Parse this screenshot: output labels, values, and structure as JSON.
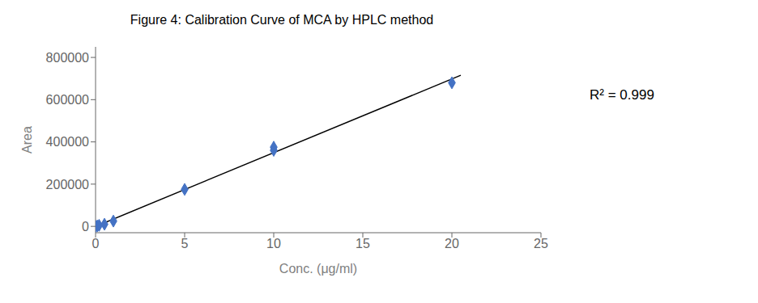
{
  "chart_data": {
    "type": "scatter",
    "title": "Figure 4: Calibration Curve of MCA by HPLC method",
    "x_label": "Conc. (μg/ml)",
    "y_label": "Area",
    "series": [
      {
        "type": "scatter",
        "x": [
          0.0,
          0.1,
          0.2,
          0.5,
          1.0,
          5.0,
          10.0,
          10.0,
          20.0
        ],
        "values": [
          0,
          2000,
          5000,
          10000,
          25000,
          175000,
          360000,
          375000,
          680000
        ],
        "color": "#4472C4",
        "marker": "diamond"
      },
      {
        "type": "line",
        "x": [
          0,
          20.5
        ],
        "values": [
          -217.2,
          715510.85
        ],
        "color": "#000000"
      }
    ],
    "annotations": [
      "R² = 0.999"
    ],
    "xlim": [
      0,
      25
    ],
    "ylim": [
      -30000,
      850000
    ],
    "xticks": [
      0,
      5,
      10,
      15,
      20,
      25
    ],
    "yticks": [
      0,
      200000,
      400000,
      600000,
      800000
    ],
    "grid": false
  }
}
